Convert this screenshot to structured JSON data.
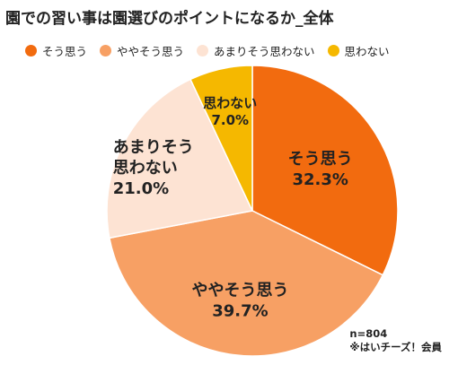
{
  "title": "園での習い事は園選びのポイントになるか_全体",
  "chart_data": {
    "type": "pie",
    "categories": [
      "そう思う",
      "ややそう思う",
      "あまりそう思わない",
      "思わない"
    ],
    "values": [
      32.3,
      39.7,
      21.0,
      7.0
    ],
    "value_labels": [
      "32.3%",
      "39.7%",
      "21.0%",
      "7.0%"
    ],
    "slice_labels": [
      [
        "そう思う"
      ],
      [
        "ややそう思う"
      ],
      [
        "あまりそう",
        "思わない"
      ],
      [
        "思わない"
      ]
    ],
    "colors": [
      "#f26b0f",
      "#f7a064",
      "#fde3d3",
      "#f5b800"
    ],
    "legend_position": "top",
    "start": "top",
    "direction": "clockwise"
  },
  "notes": {
    "n": "n=804",
    "source": "※はいチーズ！会員"
  }
}
